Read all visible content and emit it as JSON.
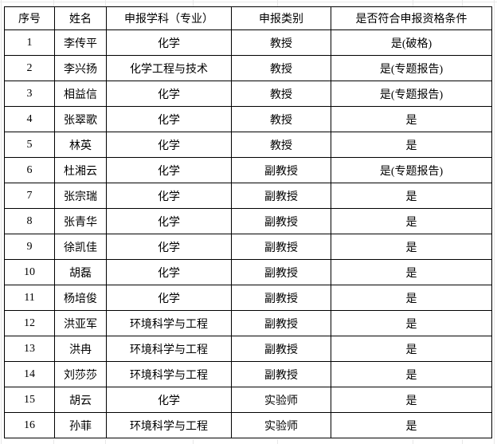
{
  "colors": {
    "background": "#ffffff",
    "table_border": "#000000",
    "gridline": "#e8e8e8",
    "text": "#000000"
  },
  "table": {
    "columns": [
      "序号",
      "姓名",
      "申报学科（专业）",
      "申报类别",
      "是否符合申报资格条件"
    ],
    "rows": [
      [
        "1",
        "李传平",
        "化学",
        "教授",
        "是(破格)"
      ],
      [
        "2",
        "李兴扬",
        "化学工程与技术",
        "教授",
        "是(专题报告)"
      ],
      [
        "3",
        "相益信",
        "化学",
        "教授",
        "是(专题报告)"
      ],
      [
        "4",
        "张翠歌",
        "化学",
        "教授",
        "是"
      ],
      [
        "5",
        "林英",
        "化学",
        "教授",
        "是"
      ],
      [
        "6",
        "杜湘云",
        "化学",
        "副教授",
        "是(专题报告)"
      ],
      [
        "7",
        "张宗瑞",
        "化学",
        "副教授",
        "是"
      ],
      [
        "8",
        "张青华",
        "化学",
        "副教授",
        "是"
      ],
      [
        "9",
        "徐凯佳",
        "化学",
        "副教授",
        "是"
      ],
      [
        "10",
        "胡磊",
        "化学",
        "副教授",
        "是"
      ],
      [
        "11",
        "杨培俊",
        "化学",
        "副教授",
        "是"
      ],
      [
        "12",
        "洪亚军",
        "环境科学与工程",
        "副教授",
        "是"
      ],
      [
        "13",
        "洪冉",
        "环境科学与工程",
        "副教授",
        "是"
      ],
      [
        "14",
        "刘莎莎",
        "环境科学与工程",
        "副教授",
        "是"
      ],
      [
        "15",
        "胡云",
        "化学",
        "实验师",
        "是"
      ],
      [
        "16",
        "孙菲",
        "环境科学与工程",
        "实验师",
        "是"
      ]
    ]
  }
}
